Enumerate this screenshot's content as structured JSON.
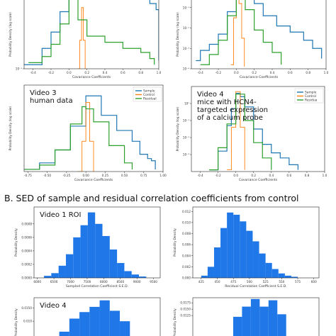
{
  "section_b_title": "B. SED of sample and residual correlation coefficients from  control",
  "colors": {
    "sample": "#1f77b4",
    "control": "#ff7f0e",
    "residual": "#2ca02c",
    "bar": "#1f77e8"
  },
  "chart_data": [
    {
      "id": "top-left",
      "type": "line",
      "title": "",
      "xlabel": "Covariance Coefficients",
      "ylabel": "Probability Density (log scale)",
      "yscale": "log",
      "xlim": [
        -0.5,
        1.0
      ],
      "ylim_exp": [
        -1,
        1
      ],
      "xticks": [
        -0.4,
        -0.2,
        0.0,
        0.2,
        0.4,
        0.6,
        0.8,
        1.0
      ],
      "xtick_labels": [
        "-0.4",
        "-0.2",
        "0.0",
        "0.2",
        "0.4",
        "0.6",
        "0.8",
        "1.0"
      ],
      "yticks_exp": [
        -1
      ],
      "ytick_labels": [
        "10⁻¹"
      ],
      "legend": null,
      "annotation": [],
      "series": [
        {
          "role": "sample",
          "x": [
            -0.5,
            -0.3,
            -0.2,
            -0.1,
            0.0,
            0.1,
            0.2,
            0.4,
            0.6,
            0.8,
            0.9,
            0.97,
            1.0
          ],
          "log_y": [
            -0.9,
            -0.5,
            -0.1,
            0.4,
            0.8,
            0.95,
            0.9,
            0.85,
            0.8,
            0.7,
            0.6,
            0.45,
            -0.8
          ]
        },
        {
          "role": "control",
          "x": [
            0.1,
            0.12,
            0.14,
            0.16,
            0.18
          ],
          "log_y": [
            -1,
            -0.3,
            0.5,
            -0.3,
            -1
          ]
        },
        {
          "role": "residual",
          "x": [
            -0.45,
            -0.3,
            -0.2,
            -0.1,
            0.0,
            0.05,
            0.1,
            0.2,
            0.4,
            0.6,
            0.8,
            0.9,
            0.95
          ],
          "log_y": [
            -0.85,
            -0.7,
            -0.4,
            0.1,
            0.85,
            0.75,
            0.2,
            -0.2,
            -0.35,
            -0.5,
            -0.6,
            -0.75,
            -0.9
          ]
        }
      ]
    },
    {
      "id": "top-right",
      "type": "line",
      "title": "",
      "xlabel": "Covariance Coefficients",
      "ylabel": "Probability Density (log scale)",
      "yscale": "log",
      "xlim": [
        -0.5,
        1.0
      ],
      "ylim_exp": [
        -4,
        0
      ],
      "xticks": [
        -0.4,
        -0.2,
        0.0,
        0.2,
        0.4,
        0.6,
        0.8,
        1.0
      ],
      "xtick_labels": [
        "-0.4",
        "-0.2",
        "0.0",
        "0.2",
        "0.4",
        "0.6",
        "0.8",
        "1.0"
      ],
      "yticks_exp": [
        -4,
        -3,
        -2,
        -1
      ],
      "ytick_labels": [
        "10⁻⁴",
        "10⁻³",
        "10⁻²",
        "10⁻¹"
      ],
      "legend": null,
      "annotation": [],
      "series": [
        {
          "role": "sample",
          "x": [
            -0.45,
            -0.4,
            -0.3,
            -0.2,
            -0.1,
            0.0,
            0.1,
            0.2,
            0.3,
            0.45,
            0.6,
            0.75,
            0.85,
            0.95
          ],
          "log_y": [
            -3.6,
            -3.1,
            -2.8,
            -2.3,
            -1.2,
            0.0,
            -0.3,
            -0.8,
            -1.4,
            -1.9,
            -2.2,
            -2.6,
            -3.0,
            -3.5
          ]
        },
        {
          "role": "control",
          "x": [
            -0.06,
            -0.03,
            0.0,
            0.03,
            0.06,
            0.09
          ],
          "log_y": [
            -3.8,
            -1.5,
            0.0,
            -0.8,
            -2.5,
            -3.9
          ]
        },
        {
          "role": "residual",
          "x": [
            -0.4,
            -0.3,
            -0.2,
            -0.1,
            0.0,
            0.1,
            0.2,
            0.3,
            0.4,
            0.5
          ],
          "log_y": [
            -3.8,
            -3.3,
            -2.6,
            -1.4,
            0.0,
            -1.1,
            -2.1,
            -2.7,
            -3.2,
            -3.8
          ]
        }
      ]
    },
    {
      "id": "video3",
      "type": "line",
      "title": "",
      "xlabel": "Covariance Coefficients",
      "ylabel": "Probability Density (log scale)",
      "yscale": "log",
      "xlim": [
        -0.8,
        1.0
      ],
      "ylim_exp": [
        -1,
        1
      ],
      "xticks": [
        -0.75,
        -0.5,
        -0.25,
        0.0,
        0.25,
        0.5,
        0.75,
        1.0
      ],
      "xtick_labels": [
        "-0.75",
        "-0.50",
        "-0.25",
        "0.00",
        "0.25",
        "0.50",
        "0.75",
        "1.00"
      ],
      "yticks_exp": [],
      "ytick_labels": [],
      "legend": [
        "Sample",
        "Control",
        "Residual"
      ],
      "annotation": [
        "Video 3",
        "human data"
      ],
      "series": [
        {
          "role": "sample",
          "x": [
            -0.8,
            -0.6,
            -0.4,
            -0.2,
            0.0,
            0.2,
            0.4,
            0.6,
            0.7,
            0.8,
            0.85,
            0.9
          ],
          "log_y": [
            -0.95,
            -0.8,
            -0.5,
            0.05,
            0.75,
            0.3,
            -0.05,
            -0.3,
            -0.6,
            -0.7,
            -0.75,
            -0.95
          ]
        },
        {
          "role": "control",
          "x": [
            -0.1,
            -0.05,
            0.0,
            0.05,
            0.1
          ],
          "log_y": [
            -1,
            -0.3,
            0.6,
            -0.3,
            -1
          ]
        },
        {
          "role": "residual",
          "x": [
            -0.8,
            -0.6,
            -0.4,
            -0.2,
            -0.05,
            0.0,
            0.1,
            0.3,
            0.5,
            0.6
          ],
          "log_y": [
            -0.95,
            -0.85,
            -0.5,
            0.1,
            0.5,
            0.45,
            0.15,
            -0.4,
            -0.8,
            -0.95
          ]
        }
      ]
    },
    {
      "id": "video4-top",
      "type": "line",
      "title": "",
      "xlabel": "Covariance Coefficients",
      "ylabel": "Probability Density (log scale)",
      "yscale": "log",
      "xlim": [
        -0.5,
        1.0
      ],
      "ylim_exp": [
        -4,
        1
      ],
      "xticks": [
        -0.4,
        -0.2,
        0.0,
        0.2,
        0.4,
        0.6,
        0.8,
        1.0
      ],
      "xtick_labels": [
        "-0.4",
        "-0.2",
        "0.0",
        "0.2",
        "0.4",
        "0.6",
        "0.8",
        "1.0"
      ],
      "yticks_exp": [
        -3,
        -2,
        -1,
        0
      ],
      "ytick_labels": [
        "10⁻³",
        "10⁻²",
        "10⁻¹",
        "10⁰"
      ],
      "legend": [
        "Sample",
        "Control",
        "Residua"
      ],
      "annotation": [
        "Video 4",
        "mice with HCN4-",
        "targeted expression",
        "of a calcium probe"
      ],
      "series": [
        {
          "role": "sample",
          "x": [
            -0.3,
            -0.2,
            -0.1,
            -0.05,
            0.0,
            0.05,
            0.1,
            0.2,
            0.3,
            0.4,
            0.5,
            0.6,
            0.7
          ],
          "log_y": [
            -3.9,
            -2.8,
            -1.3,
            -0.3,
            0.6,
            0.4,
            -0.2,
            -1.5,
            -2.4,
            -2.9,
            -3.2,
            -3.6,
            -3.9
          ]
        },
        {
          "role": "control",
          "x": [
            -0.1,
            -0.05,
            0.0,
            0.05,
            0.1
          ],
          "log_y": [
            -3.9,
            -1.4,
            0.7,
            -1.4,
            -3.9
          ]
        },
        {
          "role": "residual",
          "x": [
            -0.3,
            -0.2,
            -0.1,
            0.0,
            0.1,
            0.2,
            0.3,
            0.4
          ],
          "log_y": [
            -3.9,
            -2.6,
            -1.2,
            0.55,
            -1.0,
            -2.3,
            -3.2,
            -3.9
          ]
        }
      ]
    },
    {
      "id": "video1-sed-sample",
      "type": "bar",
      "title": "",
      "xlabel": "Sampled Correlation Coefficient S.E.D.",
      "ylabel": "Probability Density",
      "annotation": [
        "Video 1 ROI"
      ],
      "xlim": [
        5900,
        9700
      ],
      "ylim": [
        0,
        0.00105
      ],
      "xticks": [
        6000,
        6500,
        7000,
        7500,
        8000,
        8500,
        9000,
        9500
      ],
      "xtick_labels": [
        "6000",
        "6500",
        "7000",
        "7500",
        "8000",
        "8500",
        "9000",
        "9500"
      ],
      "yticks": [
        0,
        0.0002,
        0.0004,
        0.0006,
        0.0008
      ],
      "ytick_labels": [
        "0.0000",
        "0.0002",
        "0.0004",
        "0.0006",
        "0.0008"
      ],
      "bin_edges": [
        6200,
        6420,
        6640,
        6860,
        7080,
        7300,
        7520,
        7740,
        7960,
        8180,
        8400,
        8620,
        8840,
        9060,
        9280
      ],
      "values": [
        3e-05,
        7e-05,
        0.00018,
        0.00035,
        0.0006,
        0.00078,
        0.00097,
        0.0008,
        0.00062,
        0.00042,
        0.00022,
        0.0001,
        5e-05,
        2e-05
      ]
    },
    {
      "id": "video1-sed-residual",
      "type": "bar",
      "title": "",
      "xlabel": "Residual Correlation Coefficient S.E.D.",
      "ylabel": "Probability Density",
      "annotation": [],
      "xlim": [
        412,
        608
      ],
      "ylim": [
        0,
        0.0128
      ],
      "xticks": [
        425,
        450,
        475,
        500,
        525,
        550,
        575,
        600
      ],
      "xtick_labels": [
        "425",
        "450",
        "475",
        "500",
        "525",
        "550",
        "575",
        "600"
      ],
      "yticks": [
        0,
        0.002,
        0.004,
        0.006,
        0.008,
        0.01,
        0.012
      ],
      "ytick_labels": [
        "0.000",
        "0.002",
        "0.004",
        "0.006",
        "0.008",
        "0.010",
        "0.012"
      ],
      "bin_edges": [
        425,
        435,
        445,
        455,
        465,
        475,
        485,
        495,
        505,
        515,
        525,
        535,
        545,
        555,
        565,
        575
      ],
      "values": [
        0.0004,
        0.002,
        0.0055,
        0.009,
        0.0118,
        0.0114,
        0.0102,
        0.0085,
        0.0066,
        0.0044,
        0.0027,
        0.0016,
        0.0008,
        0.0004,
        0.0002
      ]
    },
    {
      "id": "video4-sed-sample",
      "type": "bar",
      "title": "",
      "xlabel": "",
      "ylabel": "Probability Density",
      "annotation": [
        "Video 4"
      ],
      "xlim": [
        0,
        10
      ],
      "ylim": [
        0,
        0.019
      ],
      "xticks": [],
      "xtick_labels": [],
      "yticks": [
        0.01,
        0.015
      ],
      "ytick_labels": [
        "0.010",
        "0.0150"
      ],
      "bin_edges": [
        2.0,
        2.8,
        3.6,
        4.4,
        5.2,
        6.0,
        6.8,
        7.6
      ],
      "values": [
        0.006,
        0.011,
        0.0135,
        0.0155,
        0.018,
        0.014,
        0.01
      ]
    },
    {
      "id": "video4-sed-residual",
      "type": "bar",
      "title": "",
      "xlabel": "",
      "ylabel": "Probability Density",
      "annotation": [],
      "xlim": [
        0,
        10
      ],
      "ylim": [
        0,
        0.0195
      ],
      "xticks": [],
      "xtick_labels": [],
      "yticks": [
        0.0125,
        0.015,
        0.0175
      ],
      "ytick_labels": [
        "0.0125",
        "0.0150",
        "0.0175"
      ],
      "bin_edges": [
        3.2,
        3.9,
        4.6,
        5.3,
        6.0,
        6.7,
        7.4
      ],
      "values": [
        0.012,
        0.016,
        0.019,
        0.016,
        0.0185,
        0.013
      ]
    }
  ]
}
